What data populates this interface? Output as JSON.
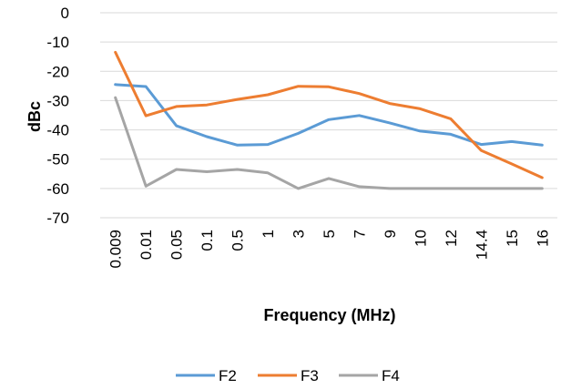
{
  "chart_data": {
    "type": "line",
    "categories": [
      "0.009",
      "0.01",
      "0.05",
      "0.1",
      "0.5",
      "1",
      "3",
      "5",
      "7",
      "9",
      "10",
      "12",
      "14.4",
      "15",
      "16"
    ],
    "series": [
      {
        "name": "F2",
        "color": "#5b9bd5",
        "values": [
          -24.5,
          -25.2,
          -38.6,
          -42.3,
          -45.2,
          -45.0,
          -41.2,
          -36.5,
          -35.1,
          -37.6,
          -40.4,
          -41.5,
          -45.0,
          -44.0,
          -45.2
        ]
      },
      {
        "name": "F3",
        "color": "#ed7d31",
        "values": [
          -13.5,
          -35.2,
          -32.0,
          -31.5,
          -29.6,
          -28.0,
          -25.1,
          -25.3,
          -27.6,
          -31.0,
          -32.8,
          -36.2,
          -47.0,
          -51.6,
          -56.3
        ]
      },
      {
        "name": "F4",
        "color": "#a5a5a5",
        "values": [
          -29.0,
          -59.2,
          -53.5,
          -54.3,
          -53.5,
          -54.7,
          -60.0,
          -56.6,
          -59.4,
          -60.0,
          -60.0,
          -60.0,
          -60.0,
          -60.0,
          -60.0
        ]
      }
    ],
    "xlabel": "Frequency (MHz)",
    "ylabel": "dBc",
    "ylim": [
      -70,
      0
    ],
    "yticks": [
      0,
      -10,
      -20,
      -30,
      -40,
      -50,
      -60,
      -70
    ],
    "ytick_labels": [
      "0",
      "-10",
      "-20",
      "-30",
      "-40",
      "-50",
      "-60",
      "-70"
    ],
    "grid": true,
    "legend": "bottom"
  }
}
